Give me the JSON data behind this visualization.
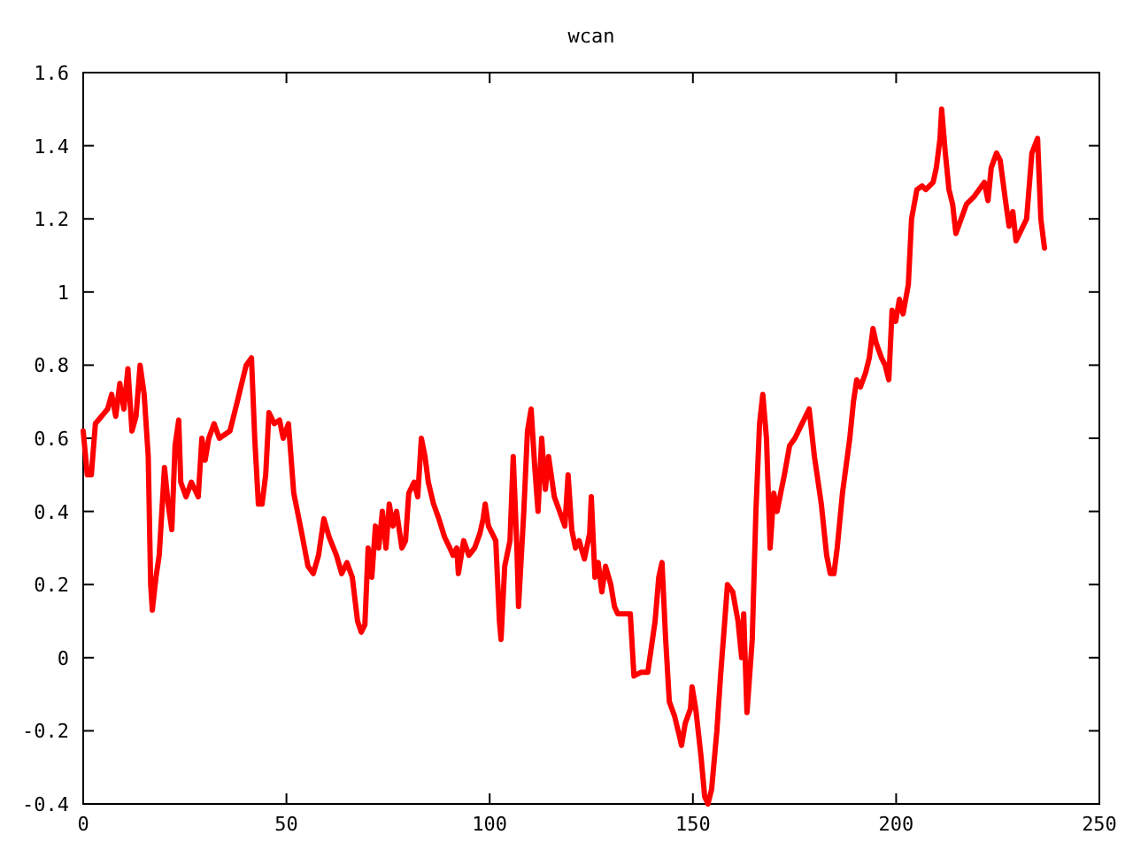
{
  "chart_data": {
    "type": "line",
    "title": "wcan",
    "xlim": [
      0,
      250
    ],
    "xticks": [
      0,
      50,
      100,
      150,
      200,
      250
    ],
    "ylim": [
      -0.4,
      1.6
    ],
    "yticks": [
      -0.4,
      -0.2,
      0,
      0.2,
      0.4,
      0.6,
      0.8,
      1,
      1.2,
      1.4,
      1.6
    ],
    "grid": false,
    "marker": "none",
    "line_style": "solid",
    "series": [
      {
        "color": "#ff0000",
        "x": [
          0,
          1,
          2,
          3,
          6,
          7,
          8,
          9,
          10,
          11,
          12,
          13,
          14,
          15,
          16,
          16.6,
          17,
          17.9,
          18.7,
          20,
          20.9,
          21.8,
          22.6,
          23.5,
          24,
          25.3,
          26.6,
          28.3,
          29.2,
          30,
          30.9,
          32.2,
          33.5,
          36.1,
          37.9,
          40.1,
          41.4,
          42.2,
          43.1,
          44,
          44.9,
          45.7,
          47,
          48.3,
          49.2,
          50.5,
          51.8,
          53.6,
          55.3,
          56.6,
          57.9,
          59.2,
          60.5,
          62.3,
          63.6,
          64.9,
          66.2,
          67.5,
          68.4,
          69.3,
          70.1,
          71,
          71.9,
          72.7,
          73.6,
          74.5,
          75.3,
          76.2,
          77.1,
          78.4,
          79.3,
          80.1,
          81.4,
          82.3,
          83.2,
          84.1,
          84.9,
          86.2,
          87.5,
          88.9,
          90.2,
          91,
          91.9,
          92.3,
          93.6,
          94.9,
          96.3,
          97.6,
          98.4,
          98.9,
          99.7,
          101.5,
          102.4,
          102.8,
          103.7,
          105,
          105.8,
          106.7,
          107.1,
          108.4,
          109.3,
          110.2,
          111.1,
          111.9,
          112.8,
          113.7,
          114.5,
          115.9,
          117.2,
          118.5,
          119.3,
          120.2,
          121.1,
          122,
          123.3,
          124.6,
          125,
          125.9,
          126.7,
          127.6,
          128.5,
          129.8,
          130.7,
          131.5,
          134.6,
          135.5,
          137.2,
          138.9,
          140.7,
          141.6,
          142.4,
          143.3,
          144.2,
          145.5,
          146.8,
          147.2,
          148.1,
          149.4,
          149.8,
          150.7,
          152,
          152.9,
          153.7,
          154.6,
          155.9,
          156.8,
          157.7,
          158.5,
          159.8,
          161.1,
          162,
          162.5,
          163.3,
          164.6,
          165.5,
          166.4,
          167.2,
          168.1,
          169,
          169.9,
          170.7,
          171.6,
          172.5,
          173.8,
          175.1,
          176.4,
          178.6,
          179.9,
          181.6,
          182.9,
          183.8,
          184.7,
          185.5,
          186.8,
          188.6,
          189.5,
          190.3,
          191.2,
          192.5,
          193.4,
          194.3,
          195.1,
          196.4,
          197.3,
          198.2,
          199,
          199.9,
          200.8,
          201.7,
          203,
          203.8,
          205.1,
          206.4,
          207.3,
          209.1,
          209.9,
          210.8,
          211.2,
          212.1,
          213,
          213.9,
          214.7,
          216,
          217.3,
          219.1,
          220.4,
          221.7,
          222.6,
          223.4,
          224.7,
          225.6,
          226.9,
          227.8,
          228.7,
          229.5,
          230.8,
          232.1,
          233.4,
          234.8,
          235.6,
          236.5
        ],
        "values": [
          0.62,
          0.5,
          0.5,
          0.64,
          0.68,
          0.72,
          0.66,
          0.75,
          0.68,
          0.79,
          0.62,
          0.66,
          0.8,
          0.72,
          0.55,
          0.2,
          0.13,
          0.22,
          0.28,
          0.52,
          0.42,
          0.35,
          0.58,
          0.65,
          0.48,
          0.44,
          0.48,
          0.44,
          0.6,
          0.54,
          0.6,
          0.64,
          0.6,
          0.62,
          0.7,
          0.8,
          0.82,
          0.6,
          0.42,
          0.42,
          0.5,
          0.67,
          0.64,
          0.65,
          0.6,
          0.64,
          0.45,
          0.35,
          0.25,
          0.23,
          0.28,
          0.38,
          0.33,
          0.28,
          0.23,
          0.26,
          0.22,
          0.1,
          0.07,
          0.09,
          0.3,
          0.22,
          0.36,
          0.3,
          0.4,
          0.3,
          0.42,
          0.36,
          0.4,
          0.3,
          0.32,
          0.45,
          0.48,
          0.44,
          0.6,
          0.55,
          0.48,
          0.42,
          0.38,
          0.33,
          0.3,
          0.28,
          0.3,
          0.23,
          0.32,
          0.28,
          0.3,
          0.34,
          0.38,
          0.42,
          0.36,
          0.32,
          0.1,
          0.05,
          0.25,
          0.32,
          0.55,
          0.3,
          0.14,
          0.4,
          0.62,
          0.68,
          0.52,
          0.4,
          0.6,
          0.46,
          0.55,
          0.44,
          0.4,
          0.36,
          0.5,
          0.35,
          0.3,
          0.32,
          0.27,
          0.34,
          0.44,
          0.22,
          0.26,
          0.18,
          0.25,
          0.2,
          0.14,
          0.12,
          0.12,
          -0.05,
          -0.04,
          -0.04,
          0.1,
          0.22,
          0.26,
          0.05,
          -0.12,
          -0.16,
          -0.22,
          -0.24,
          -0.18,
          -0.14,
          -0.08,
          -0.14,
          -0.27,
          -0.38,
          -0.4,
          -0.36,
          -0.2,
          -0.05,
          0.08,
          0.2,
          0.18,
          0.1,
          0,
          0.12,
          -0.15,
          0.05,
          0.4,
          0.64,
          0.72,
          0.6,
          0.3,
          0.45,
          0.4,
          0.45,
          0.5,
          0.58,
          0.6,
          0.63,
          0.68,
          0.55,
          0.42,
          0.28,
          0.23,
          0.23,
          0.3,
          0.45,
          0.6,
          0.7,
          0.76,
          0.74,
          0.78,
          0.82,
          0.9,
          0.86,
          0.82,
          0.8,
          0.76,
          0.95,
          0.92,
          0.98,
          0.94,
          1.02,
          1.2,
          1.28,
          1.29,
          1.28,
          1.3,
          1.34,
          1.42,
          1.5,
          1.38,
          1.28,
          1.24,
          1.16,
          1.2,
          1.24,
          1.26,
          1.28,
          1.3,
          1.25,
          1.34,
          1.38,
          1.36,
          1.25,
          1.18,
          1.22,
          1.14,
          1.17,
          1.2,
          1.38,
          1.42,
          1.2,
          1.12
        ]
      }
    ]
  }
}
